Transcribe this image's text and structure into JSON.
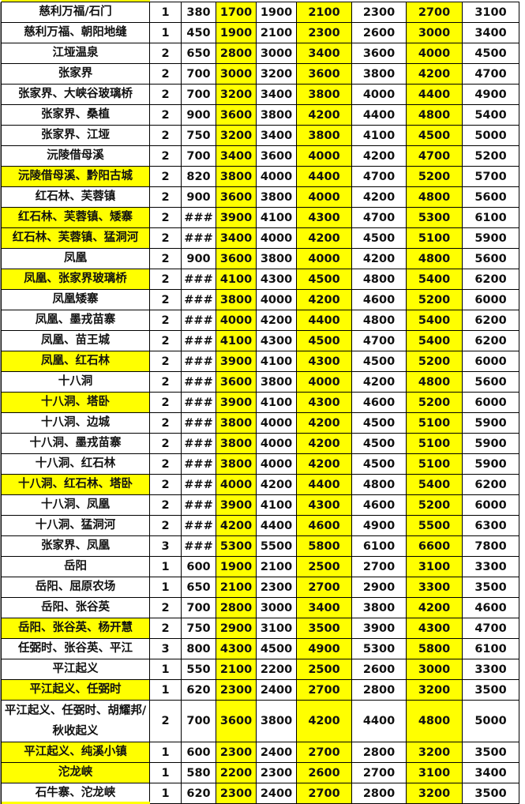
{
  "colors": {
    "highlight": "#ffff00",
    "border": "#000000"
  },
  "highlight_value_columns": [
    2,
    4,
    6
  ],
  "rows": [
    {
      "name": "慈利万福/石门",
      "hl": false,
      "v": [
        "1",
        "380",
        "1700",
        "1900",
        "2100",
        "2300",
        "2700",
        "3100"
      ]
    },
    {
      "name": "慈利万福、朝阳地缝",
      "hl": false,
      "v": [
        "1",
        "450",
        "1900",
        "2100",
        "2300",
        "2600",
        "3000",
        "3400"
      ]
    },
    {
      "name": "江垭温泉",
      "hl": false,
      "v": [
        "2",
        "650",
        "2800",
        "3000",
        "3400",
        "3600",
        "4000",
        "4500"
      ]
    },
    {
      "name": "张家界",
      "hl": false,
      "v": [
        "2",
        "700",
        "3000",
        "3200",
        "3600",
        "3800",
        "4200",
        "4700"
      ]
    },
    {
      "name": "张家界、大峡谷玻璃桥",
      "hl": false,
      "v": [
        "2",
        "700",
        "3200",
        "3400",
        "3800",
        "4000",
        "4400",
        "4900"
      ]
    },
    {
      "name": "张家界、桑植",
      "hl": false,
      "v": [
        "2",
        "900",
        "3600",
        "3800",
        "4200",
        "4400",
        "4800",
        "5400"
      ]
    },
    {
      "name": "张家界、江垭",
      "hl": false,
      "v": [
        "2",
        "750",
        "3200",
        "3400",
        "3800",
        "4100",
        "4500",
        "5000"
      ]
    },
    {
      "name": "沅陵借母溪",
      "hl": false,
      "v": [
        "2",
        "700",
        "3400",
        "3600",
        "4000",
        "4200",
        "4700",
        "5200"
      ]
    },
    {
      "name": "沅陵借母溪、黔阳古城",
      "hl": true,
      "v": [
        "2",
        "820",
        "3800",
        "4000",
        "4400",
        "4700",
        "5200",
        "5700"
      ]
    },
    {
      "name": "红石林、芙蓉镇",
      "hl": false,
      "v": [
        "2",
        "900",
        "3600",
        "3800",
        "4000",
        "4200",
        "4800",
        "5600"
      ]
    },
    {
      "name": "红石林、芙蓉镇、矮寨",
      "hl": true,
      "v": [
        "2",
        "###",
        "3900",
        "4100",
        "4300",
        "4700",
        "5300",
        "6100"
      ]
    },
    {
      "name": "红石林、芙蓉镇、猛洞河",
      "hl": true,
      "v": [
        "2",
        "###",
        "3400",
        "4000",
        "4200",
        "4500",
        "5100",
        "5900"
      ]
    },
    {
      "name": "凤凰",
      "hl": false,
      "v": [
        "2",
        "900",
        "3600",
        "3800",
        "4000",
        "4200",
        "4800",
        "5600"
      ]
    },
    {
      "name": "凤凰、张家界玻璃桥",
      "hl": true,
      "v": [
        "2",
        "###",
        "4100",
        "4300",
        "4500",
        "4800",
        "5400",
        "6200"
      ]
    },
    {
      "name": "凤凰矮寨",
      "hl": false,
      "v": [
        "2",
        "###",
        "3800",
        "4000",
        "4200",
        "4600",
        "5200",
        "6000"
      ]
    },
    {
      "name": "凤凰、墨戎苗寨",
      "hl": false,
      "v": [
        "2",
        "###",
        "4000",
        "4200",
        "4400",
        "4800",
        "5400",
        "6200"
      ]
    },
    {
      "name": "凤凰、苗王城",
      "hl": false,
      "v": [
        "2",
        "###",
        "4100",
        "4300",
        "4500",
        "4700",
        "5400",
        "6200"
      ]
    },
    {
      "name": "凤凰、红石林",
      "hl": true,
      "v": [
        "2",
        "###",
        "3900",
        "4100",
        "4300",
        "4500",
        "5200",
        "6000"
      ]
    },
    {
      "name": "十八洞",
      "hl": false,
      "v": [
        "2",
        "###",
        "3600",
        "3800",
        "4000",
        "4200",
        "4800",
        "5600"
      ]
    },
    {
      "name": "十八洞、塔卧",
      "hl": true,
      "v": [
        "2",
        "###",
        "3900",
        "4100",
        "4300",
        "4600",
        "5200",
        "6000"
      ]
    },
    {
      "name": "十八洞、边城",
      "hl": false,
      "v": [
        "2",
        "###",
        "3800",
        "4000",
        "4200",
        "4500",
        "5100",
        "5900"
      ]
    },
    {
      "name": "十八洞、墨戎苗寨",
      "hl": false,
      "v": [
        "2",
        "###",
        "3800",
        "4000",
        "4200",
        "4500",
        "5100",
        "5900"
      ]
    },
    {
      "name": "十八洞、红石林",
      "hl": false,
      "v": [
        "2",
        "###",
        "3800",
        "4000",
        "4200",
        "4500",
        "5100",
        "5900"
      ]
    },
    {
      "name": "十八洞、红石林、塔卧",
      "hl": true,
      "v": [
        "2",
        "###",
        "4000",
        "4200",
        "4400",
        "4800",
        "5400",
        "6200"
      ]
    },
    {
      "name": "十八洞、凤凰",
      "hl": false,
      "v": [
        "2",
        "###",
        "3900",
        "4100",
        "4300",
        "4600",
        "5200",
        "6000"
      ]
    },
    {
      "name": "十八洞、猛洞河",
      "hl": false,
      "v": [
        "2",
        "###",
        "4200",
        "4400",
        "4600",
        "4900",
        "5500",
        "6300"
      ]
    },
    {
      "name": "张家界、凤凰",
      "hl": false,
      "v": [
        "3",
        "###",
        "5300",
        "5500",
        "5800",
        "6100",
        "6600",
        "7800"
      ]
    },
    {
      "name": "岳阳",
      "hl": false,
      "v": [
        "1",
        "600",
        "1900",
        "2100",
        "2500",
        "2700",
        "3100",
        "3300"
      ]
    },
    {
      "name": "岳阳、屈原农场",
      "hl": false,
      "v": [
        "1",
        "650",
        "2100",
        "2300",
        "2700",
        "2900",
        "3300",
        "3500"
      ]
    },
    {
      "name": "岳阳、张谷英",
      "hl": false,
      "v": [
        "2",
        "700",
        "2800",
        "3000",
        "3400",
        "3800",
        "4200",
        "4600"
      ]
    },
    {
      "name": "岳阳、张谷英、杨开慧",
      "hl": true,
      "v": [
        "2",
        "750",
        "2900",
        "3100",
        "3500",
        "3900",
        "4300",
        "4700"
      ]
    },
    {
      "name": "任弼时、张谷英、平江",
      "hl": false,
      "v": [
        "3",
        "800",
        "4300",
        "4500",
        "4900",
        "5300",
        "5800",
        "6100"
      ]
    },
    {
      "name": "平江起义",
      "hl": false,
      "v": [
        "1",
        "550",
        "2100",
        "2200",
        "2500",
        "2600",
        "3000",
        "3300"
      ]
    },
    {
      "name": "平江起义、任弼时",
      "hl": true,
      "v": [
        "1",
        "620",
        "2300",
        "2400",
        "2700",
        "2800",
        "3200",
        "3500"
      ]
    },
    {
      "name": "平江起义、任弼时、胡耀邦/秋收起义",
      "hl": false,
      "tall": true,
      "v": [
        "2",
        "700",
        "3600",
        "3800",
        "4200",
        "4400",
        "4800",
        "5000"
      ]
    },
    {
      "name": "平江起义、纯溪小镇",
      "hl": true,
      "v": [
        "1",
        "600",
        "2300",
        "2400",
        "2700",
        "2800",
        "3200",
        "3500"
      ]
    },
    {
      "name": "沱龙峡",
      "hl": true,
      "v": [
        "1",
        "580",
        "2200",
        "2300",
        "2600",
        "2700",
        "3100",
        "3400"
      ]
    },
    {
      "name": "石牛寨、沱龙峡",
      "hl": false,
      "v": [
        "1",
        "620",
        "2300",
        "2400",
        "2700",
        "2800",
        "3200",
        "3500"
      ]
    }
  ]
}
